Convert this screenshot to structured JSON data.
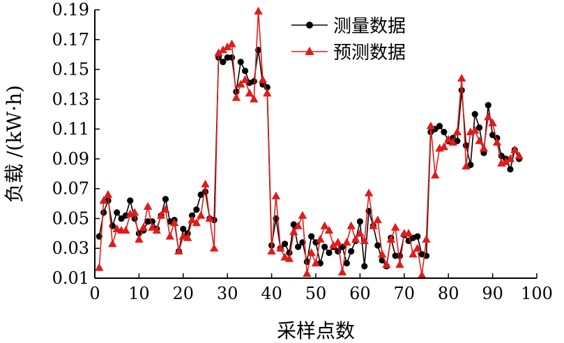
{
  "chart_data": {
    "type": "line",
    "xlabel": "采样点数",
    "ylabel": "负载 /(kW·h)",
    "xlim": [
      0,
      100
    ],
    "ylim": [
      0.01,
      0.19
    ],
    "x_ticks": [
      "0",
      "10",
      "20",
      "30",
      "40",
      "50",
      "60",
      "70",
      "80",
      "90",
      "100"
    ],
    "y_ticks": [
      "0.01",
      "0.03",
      "0.05",
      "0.07",
      "0.09",
      "0.11",
      "0.13",
      "0.15",
      "0.17",
      "0.19"
    ],
    "grid": false,
    "legend_position": "top-center",
    "series": [
      {
        "name": "测量数据",
        "color": "#000000",
        "marker": "circle",
        "x": [
          1,
          2,
          3,
          4,
          5,
          6,
          7,
          8,
          9,
          10,
          11,
          12,
          13,
          14,
          15,
          16,
          17,
          18,
          19,
          20,
          21,
          22,
          23,
          24,
          25,
          26,
          27,
          28,
          29,
          30,
          31,
          32,
          33,
          34,
          35,
          36,
          37,
          38,
          39,
          40,
          41,
          42,
          43,
          44,
          45,
          46,
          47,
          48,
          49,
          50,
          51,
          52,
          53,
          54,
          55,
          56,
          57,
          58,
          59,
          60,
          61,
          62,
          63,
          64,
          65,
          66,
          67,
          68,
          69,
          70,
          71,
          72,
          73,
          74,
          75,
          76,
          77,
          78,
          79,
          80,
          81,
          82,
          83,
          84,
          85,
          86,
          87,
          88,
          89,
          90,
          91,
          92,
          93,
          94,
          95,
          96
        ],
        "values": [
          0.038,
          0.054,
          0.062,
          0.045,
          0.054,
          0.05,
          0.052,
          0.062,
          0.05,
          0.04,
          0.042,
          0.048,
          0.048,
          0.043,
          0.052,
          0.063,
          0.048,
          0.049,
          0.028,
          0.043,
          0.04,
          0.052,
          0.056,
          0.066,
          0.068,
          0.05,
          0.049,
          0.158,
          0.155,
          0.158,
          0.158,
          0.135,
          0.155,
          0.149,
          0.141,
          0.142,
          0.163,
          0.14,
          0.138,
          0.032,
          0.05,
          0.03,
          0.033,
          0.027,
          0.046,
          0.031,
          0.034,
          0.021,
          0.038,
          0.034,
          0.02,
          0.031,
          0.027,
          0.031,
          0.028,
          0.031,
          0.02,
          0.028,
          0.035,
          0.048,
          0.018,
          0.055,
          0.045,
          0.032,
          0.022,
          0.018,
          0.037,
          0.025,
          0.025,
          0.039,
          0.035,
          0.037,
          0.038,
          0.026,
          0.025,
          0.108,
          0.11,
          0.112,
          0.108,
          0.102,
          0.104,
          0.102,
          0.136,
          0.099,
          0.086,
          0.12,
          0.111,
          0.094,
          0.126,
          0.106,
          0.104,
          0.092,
          0.09,
          0.083,
          0.096,
          0.09
        ]
      },
      {
        "name": "预测数据",
        "color": "#e01b1b",
        "marker": "triangle",
        "x": [
          1,
          2,
          3,
          4,
          5,
          6,
          7,
          8,
          9,
          10,
          11,
          12,
          13,
          14,
          15,
          16,
          17,
          18,
          19,
          20,
          21,
          22,
          23,
          24,
          25,
          26,
          27,
          28,
          29,
          30,
          31,
          32,
          33,
          34,
          35,
          36,
          37,
          38,
          39,
          40,
          41,
          42,
          43,
          44,
          45,
          46,
          47,
          48,
          49,
          50,
          51,
          52,
          53,
          54,
          55,
          56,
          57,
          58,
          59,
          60,
          61,
          62,
          63,
          64,
          65,
          66,
          67,
          68,
          69,
          70,
          71,
          72,
          73,
          74,
          75,
          76,
          77,
          78,
          79,
          80,
          81,
          82,
          83,
          84,
          85,
          86,
          87,
          88,
          89,
          90,
          91,
          92,
          93,
          94,
          95,
          96
        ],
        "values": [
          0.017,
          0.062,
          0.066,
          0.033,
          0.043,
          0.042,
          0.042,
          0.053,
          0.054,
          0.036,
          0.044,
          0.058,
          0.044,
          0.042,
          0.052,
          0.056,
          0.038,
          0.047,
          0.028,
          0.038,
          0.037,
          0.049,
          0.047,
          0.052,
          0.073,
          0.05,
          0.03,
          0.161,
          0.163,
          0.165,
          0.167,
          0.131,
          0.14,
          0.143,
          0.134,
          0.13,
          0.189,
          0.143,
          0.134,
          0.028,
          0.065,
          0.03,
          0.024,
          0.023,
          0.041,
          0.045,
          0.052,
          0.013,
          0.027,
          0.02,
          0.036,
          0.045,
          0.042,
          0.032,
          0.034,
          0.014,
          0.034,
          0.045,
          0.036,
          0.04,
          0.035,
          0.067,
          0.045,
          0.049,
          0.026,
          0.019,
          0.036,
          0.044,
          0.019,
          0.04,
          0.04,
          0.026,
          0.03,
          0.012,
          0.036,
          0.112,
          0.079,
          0.097,
          0.098,
          0.103,
          0.101,
          0.108,
          0.144,
          0.085,
          0.108,
          0.109,
          0.102,
          0.097,
          0.118,
          0.114,
          0.101,
          0.087,
          0.088,
          0.09,
          0.096,
          0.092
        ]
      }
    ]
  }
}
